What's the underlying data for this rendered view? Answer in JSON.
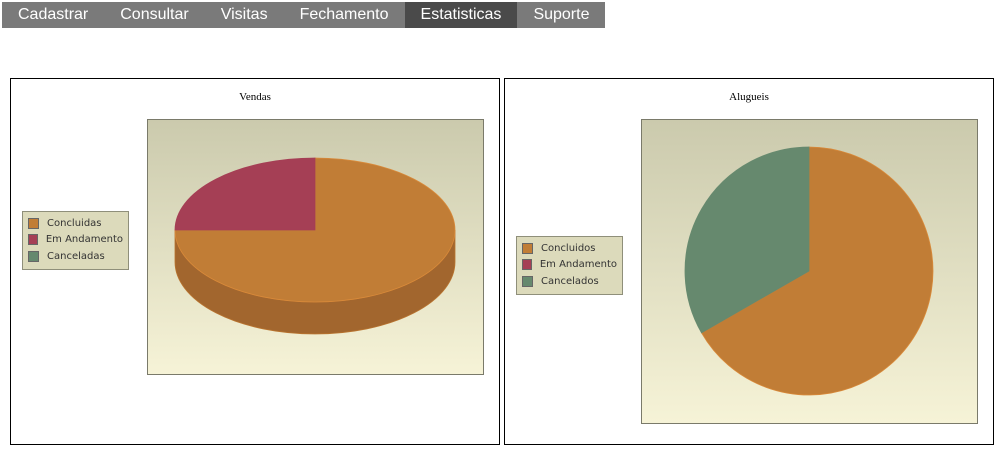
{
  "nav": {
    "items": [
      "Cadastrar",
      "Consultar",
      "Visitas",
      "Fechamento",
      "Estatisticas",
      "Suporte"
    ],
    "active_index": 4
  },
  "colors": {
    "concluded": "#c17d36",
    "concluded_side": "#a2662e",
    "in_progress": "#a53f55",
    "canceled": "#66896e"
  },
  "chart_data": [
    {
      "type": "pie",
      "title": "Vendas",
      "style": "3d",
      "legend_position": "left",
      "slices": [
        {
          "label": "Concluidas",
          "value": 75
        },
        {
          "label": "Em Andamento",
          "value": 25
        },
        {
          "label": "Canceladas",
          "value": 0
        }
      ]
    },
    {
      "type": "pie",
      "title": "Alugueis",
      "style": "2d",
      "legend_position": "left",
      "slices": [
        {
          "label": "Concluidos",
          "value": 66.7
        },
        {
          "label": "Em Andamento",
          "value": 0
        },
        {
          "label": "Cancelados",
          "value": 33.3
        }
      ]
    }
  ]
}
